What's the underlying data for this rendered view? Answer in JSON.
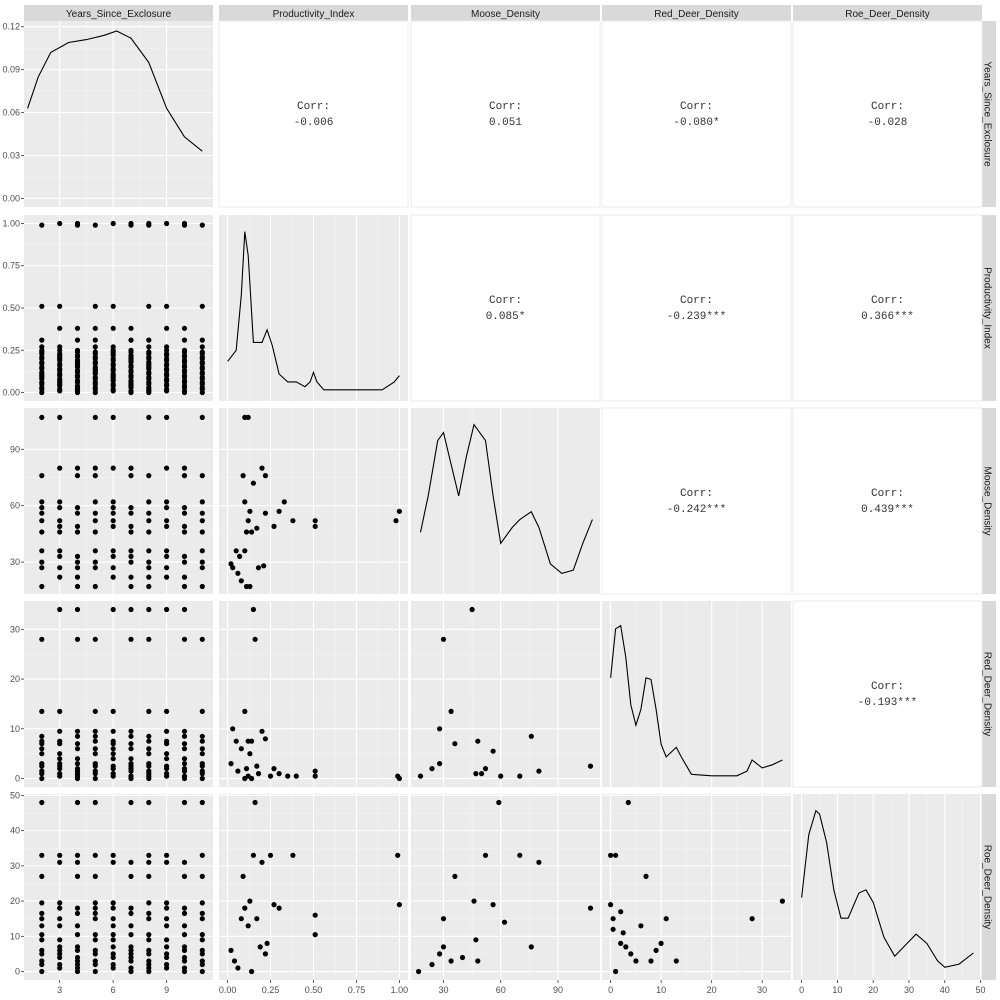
{
  "chart_data": {
    "type": "scatter",
    "variables": [
      "Years_Since_Exclosure",
      "Productivity_Index",
      "Moose_Density",
      "Red_Deer_Density",
      "Roe_Deer_Density"
    ],
    "corr_label": "Corr:",
    "correlations": [
      {
        "row": 0,
        "col": 1,
        "value": "-0.006"
      },
      {
        "row": 0,
        "col": 2,
        "value": "0.051"
      },
      {
        "row": 0,
        "col": 3,
        "value": "-0.080*"
      },
      {
        "row": 0,
        "col": 4,
        "value": "-0.028"
      },
      {
        "row": 1,
        "col": 2,
        "value": "0.085*"
      },
      {
        "row": 1,
        "col": 3,
        "value": "-0.239***"
      },
      {
        "row": 1,
        "col": 4,
        "value": "0.366***"
      },
      {
        "row": 2,
        "col": 3,
        "value": "-0.242***"
      },
      {
        "row": 2,
        "col": 4,
        "value": "0.439***"
      },
      {
        "row": 3,
        "col": 4,
        "value": "-0.193***"
      }
    ],
    "axes": [
      {
        "name": "Years_Since_Exclosure",
        "range": [
          1,
          11.6
        ],
        "ticks": [
          3,
          6,
          9
        ]
      },
      {
        "name": "Productivity_Index",
        "range": [
          -0.05,
          1.05
        ],
        "ticks": [
          0.0,
          0.25,
          0.5,
          0.75,
          1.0
        ],
        "tick_labels": [
          "0.00",
          "0.25",
          "0.50",
          "0.75",
          "1.00"
        ]
      },
      {
        "name": "Moose_Density",
        "range": [
          13,
          112
        ],
        "ticks": [
          30,
          60,
          90
        ]
      },
      {
        "name": "Red_Deer_Density",
        "range": [
          -1.7,
          35.7
        ],
        "ticks": [
          0,
          10,
          20,
          30
        ]
      },
      {
        "name": "Roe_Deer_Density",
        "range": [
          -2.4,
          50.4
        ],
        "ticks": [
          0,
          10,
          20,
          30,
          40,
          50
        ]
      }
    ],
    "density_y_axis": {
      "range": [
        -0.006,
        0.124
      ],
      "ticks": [
        0.0,
        0.03,
        0.06,
        0.09,
        0.12
      ],
      "tick_labels": [
        "0.00",
        "0.03",
        "0.06",
        "0.09",
        "0.12"
      ]
    },
    "densities": [
      {
        "var": "Years_Since_Exclosure",
        "x": [
          1.2,
          1.8,
          2.5,
          3.5,
          4.5,
          5.5,
          6.2,
          7,
          8,
          9,
          10,
          11
        ],
        "y": [
          0.063,
          0.085,
          0.102,
          0.109,
          0.111,
          0.114,
          0.117,
          0.112,
          0.095,
          0.063,
          0.043,
          0.033
        ]
      },
      {
        "var": "Productivity_Index",
        "x": [
          0,
          0.05,
          0.08,
          0.1,
          0.12,
          0.15,
          0.2,
          0.23,
          0.26,
          0.3,
          0.35,
          0.4,
          0.45,
          0.48,
          0.5,
          0.52,
          0.56,
          0.7,
          0.9,
          0.97,
          1.0
        ],
        "y": [
          0.18,
          0.25,
          0.6,
          1.0,
          0.85,
          0.3,
          0.3,
          0.38,
          0.28,
          0.1,
          0.05,
          0.05,
          0.02,
          0.05,
          0.11,
          0.05,
          0.0,
          0.0,
          0.0,
          0.05,
          0.09
        ]
      },
      {
        "var": "Moose_Density",
        "x": [
          18,
          22,
          27,
          30,
          35,
          38,
          42,
          46,
          52,
          56,
          60,
          66,
          70,
          76,
          80,
          86,
          92,
          98,
          103,
          108
        ],
        "y": [
          0.32,
          0.55,
          0.9,
          0.95,
          0.7,
          0.55,
          0.8,
          1.0,
          0.9,
          0.55,
          0.25,
          0.35,
          0.4,
          0.45,
          0.35,
          0.12,
          0.06,
          0.08,
          0.25,
          0.4
        ]
      },
      {
        "var": "Red_Deer_Density",
        "x": [
          0,
          1,
          2,
          3,
          4,
          5,
          6,
          7,
          8,
          9,
          10,
          11,
          12,
          13,
          14,
          16,
          20,
          25,
          27,
          28,
          30,
          32,
          34
        ],
        "y": [
          0.62,
          0.93,
          0.95,
          0.75,
          0.45,
          0.32,
          0.42,
          0.62,
          0.61,
          0.42,
          0.2,
          0.12,
          0.15,
          0.18,
          0.12,
          0.01,
          0.0,
          0.0,
          0.03,
          0.1,
          0.05,
          0.07,
          0.1
        ]
      },
      {
        "var": "Roe_Deer_Density",
        "x": [
          0,
          2,
          4,
          5,
          7,
          9,
          11,
          13,
          16,
          18,
          20,
          23,
          26,
          29,
          32,
          35,
          38,
          40,
          44,
          48
        ],
        "y": [
          0.45,
          0.85,
          1.0,
          0.98,
          0.8,
          0.5,
          0.32,
          0.32,
          0.48,
          0.5,
          0.42,
          0.2,
          0.08,
          0.15,
          0.22,
          0.16,
          0.05,
          0.01,
          0.03,
          0.1
        ]
      }
    ],
    "points": {
      "years": [
        2,
        3,
        4,
        5,
        6,
        7,
        8,
        9,
        10,
        11
      ],
      "productivity": [
        0.0,
        0.01,
        0.02,
        0.03,
        0.04,
        0.05,
        0.06,
        0.07,
        0.08,
        0.09,
        0.1,
        0.11,
        0.12,
        0.13,
        0.14,
        0.15,
        0.16,
        0.17,
        0.18,
        0.19,
        0.2,
        0.21,
        0.22,
        0.23,
        0.24,
        0.25,
        0.27,
        0.31,
        0.38,
        0.51,
        0.99,
        1.0
      ],
      "moose": [
        17,
        22,
        27,
        30,
        33,
        36,
        46,
        49,
        52,
        56,
        59,
        62,
        76,
        80,
        107
      ],
      "red_deer": [
        0,
        0.5,
        1,
        1.5,
        2,
        2.5,
        3,
        4,
        5,
        6,
        7,
        7.5,
        8.5,
        9.5,
        13.5,
        28,
        34
      ],
      "roe_deer": [
        0,
        1,
        2,
        3,
        4,
        5,
        6,
        7,
        9,
        10.5,
        13,
        15,
        16.5,
        18,
        19.5,
        27,
        31,
        33,
        48
      ],
      "pairs_pm": [
        [
          0.02,
          29
        ],
        [
          0.03,
          27
        ],
        [
          0.06,
          24
        ],
        [
          0.05,
          36
        ],
        [
          0.07,
          33
        ],
        [
          0.08,
          20
        ],
        [
          0.1,
          36
        ],
        [
          0.11,
          46
        ],
        [
          0.12,
          52
        ],
        [
          0.13,
          57
        ],
        [
          0.14,
          46
        ],
        [
          0.1,
          62
        ],
        [
          0.09,
          76
        ],
        [
          0.15,
          72
        ],
        [
          0.17,
          48
        ],
        [
          0.18,
          27
        ],
        [
          0.2,
          80
        ],
        [
          0.22,
          76
        ],
        [
          0.21,
          28
        ],
        [
          0.22,
          56
        ],
        [
          0.27,
          49
        ],
        [
          0.3,
          57
        ],
        [
          0.33,
          62
        ],
        [
          0.38,
          52
        ],
        [
          0.51,
          52
        ],
        [
          0.51,
          49
        ],
        [
          0.98,
          52
        ],
        [
          1.0,
          57
        ],
        [
          0.1,
          107
        ],
        [
          0.12,
          107
        ],
        [
          0.11,
          17
        ],
        [
          0.13,
          17
        ]
      ],
      "pairs_pr": [
        [
          0.02,
          3
        ],
        [
          0.03,
          10
        ],
        [
          0.05,
          7.5
        ],
        [
          0.06,
          1.5
        ],
        [
          0.08,
          6
        ],
        [
          0.1,
          13.5
        ],
        [
          0.11,
          2
        ],
        [
          0.12,
          7.5
        ],
        [
          0.13,
          5
        ],
        [
          0.14,
          7.5
        ],
        [
          0.15,
          34
        ],
        [
          0.16,
          28
        ],
        [
          0.17,
          2.5
        ],
        [
          0.18,
          1
        ],
        [
          0.2,
          9.5
        ],
        [
          0.22,
          8
        ],
        [
          0.25,
          0.5
        ],
        [
          0.27,
          2
        ],
        [
          0.3,
          1
        ],
        [
          0.35,
          0.5
        ],
        [
          0.4,
          0.5
        ],
        [
          0.51,
          1.5
        ],
        [
          0.51,
          0.5
        ],
        [
          0.99,
          0.5
        ],
        [
          1.0,
          0
        ],
        [
          0.1,
          0
        ],
        [
          0.12,
          0.5
        ],
        [
          0.14,
          0
        ]
      ],
      "pairs_po": [
        [
          0.02,
          6
        ],
        [
          0.04,
          3
        ],
        [
          0.06,
          1
        ],
        [
          0.08,
          15
        ],
        [
          0.09,
          27
        ],
        [
          0.1,
          18
        ],
        [
          0.12,
          13
        ],
        [
          0.13,
          20
        ],
        [
          0.15,
          33
        ],
        [
          0.16,
          48
        ],
        [
          0.17,
          15
        ],
        [
          0.19,
          7
        ],
        [
          0.2,
          31
        ],
        [
          0.22,
          5
        ],
        [
          0.23,
          8
        ],
        [
          0.25,
          33
        ],
        [
          0.27,
          19
        ],
        [
          0.3,
          18
        ],
        [
          0.38,
          33
        ],
        [
          0.51,
          16
        ],
        [
          0.51,
          10.5
        ],
        [
          0.99,
          33
        ],
        [
          1.0,
          19
        ],
        [
          0.14,
          0
        ]
      ],
      "pairs_mr": [
        [
          18,
          0.5
        ],
        [
          24,
          2
        ],
        [
          28,
          10
        ],
        [
          30,
          28
        ],
        [
          34,
          13.5
        ],
        [
          36,
          7
        ],
        [
          45,
          34
        ],
        [
          47,
          1
        ],
        [
          48,
          7.5
        ],
        [
          50,
          1
        ],
        [
          52,
          2
        ],
        [
          56,
          5.5
        ],
        [
          60,
          0.5
        ],
        [
          70,
          0.5
        ],
        [
          76,
          8.5
        ],
        [
          80,
          1.5
        ],
        [
          107,
          2.5
        ],
        [
          28,
          3
        ]
      ],
      "pairs_mo": [
        [
          17,
          0
        ],
        [
          24,
          2
        ],
        [
          28,
          5
        ],
        [
          30,
          15
        ],
        [
          34,
          3
        ],
        [
          36,
          27
        ],
        [
          46,
          20
        ],
        [
          47,
          9
        ],
        [
          48,
          3
        ],
        [
          52,
          33
        ],
        [
          56,
          19
        ],
        [
          59,
          48
        ],
        [
          62,
          14
        ],
        [
          70,
          33
        ],
        [
          76,
          7
        ],
        [
          80,
          31
        ],
        [
          107,
          18
        ],
        [
          30,
          7
        ],
        [
          40,
          4
        ]
      ],
      "pairs_ro": [
        [
          0,
          33
        ],
        [
          0,
          19
        ],
        [
          0.5,
          15
        ],
        [
          1,
          33
        ],
        [
          1,
          0
        ],
        [
          2,
          17
        ],
        [
          2.5,
          11
        ],
        [
          3,
          7
        ],
        [
          3.5,
          48
        ],
        [
          4,
          5
        ],
        [
          5,
          3
        ],
        [
          6,
          13
        ],
        [
          7,
          27
        ],
        [
          8,
          3
        ],
        [
          9,
          6
        ],
        [
          10,
          8
        ],
        [
          11,
          15
        ],
        [
          13,
          3
        ],
        [
          28,
          15
        ],
        [
          34,
          20
        ],
        [
          0.5,
          12
        ],
        [
          2,
          8
        ]
      ]
    },
    "grid": true,
    "legend": "none"
  }
}
